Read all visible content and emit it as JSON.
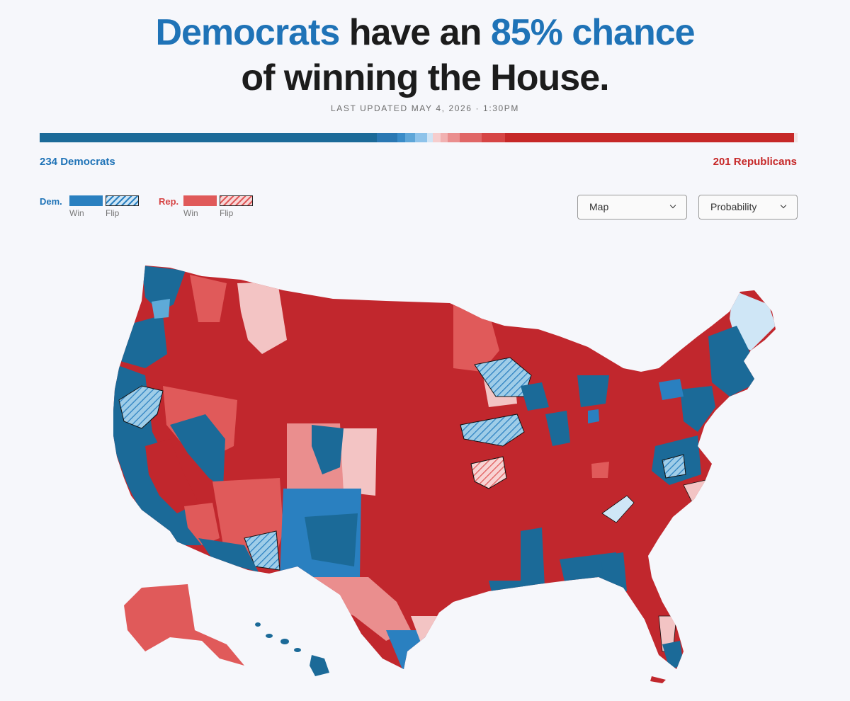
{
  "headline": {
    "dem_word": "Democrats",
    "middle": " have an ",
    "chance": "85% chance",
    "line2": "of winning the House."
  },
  "updated": "LAST UPDATED MAY 4, 2026 · 1:30PM",
  "seats": {
    "democrats_label": "234 Democrats",
    "republicans_label": "201 Republicans",
    "democrats": 234,
    "republicans": 201,
    "bar_segments": [
      {
        "color": "#1b6a98",
        "share": 0.445
      },
      {
        "color": "#2a78b3",
        "share": 0.027
      },
      {
        "color": "#3a8cc8",
        "share": 0.01
      },
      {
        "color": "#5ea6d8",
        "share": 0.013
      },
      {
        "color": "#8ec3ea",
        "share": 0.016
      },
      {
        "color": "#cfe4f5",
        "share": 0.008
      },
      {
        "color": "#f6cdcd",
        "share": 0.01
      },
      {
        "color": "#f1b1b1",
        "share": 0.009
      },
      {
        "color": "#ea8e8e",
        "share": 0.016
      },
      {
        "color": "#e06666",
        "share": 0.029
      },
      {
        "color": "#d64545",
        "share": 0.031
      },
      {
        "color": "#c62828",
        "share": 0.381
      },
      {
        "color": "#f0e2e2",
        "share": 0.005
      }
    ]
  },
  "legend": {
    "dem": {
      "party": "Dem.",
      "win": "Win",
      "flip": "Flip",
      "color": "#2a80c0",
      "flip_color": "#9fcde8"
    },
    "rep": {
      "party": "Rep.",
      "win": "Win",
      "flip": "Flip",
      "color": "#e05a5a",
      "flip_color": "#f0a0a0"
    }
  },
  "controls": {
    "view": "Map",
    "metric": "Probability"
  },
  "colors": {
    "solid_dem": "#1b6a98",
    "likely_dem": "#2a80c0",
    "lean_dem": "#5eaad8",
    "tilt_dem": "#cfe6f6",
    "solid_rep": "#c1272d",
    "likely_rep": "#e05a5a",
    "lean_rep": "#ea8e8e",
    "tilt_rep": "#f3c4c4",
    "dem_text": "#1f73b7",
    "rep_text": "#c62828"
  }
}
